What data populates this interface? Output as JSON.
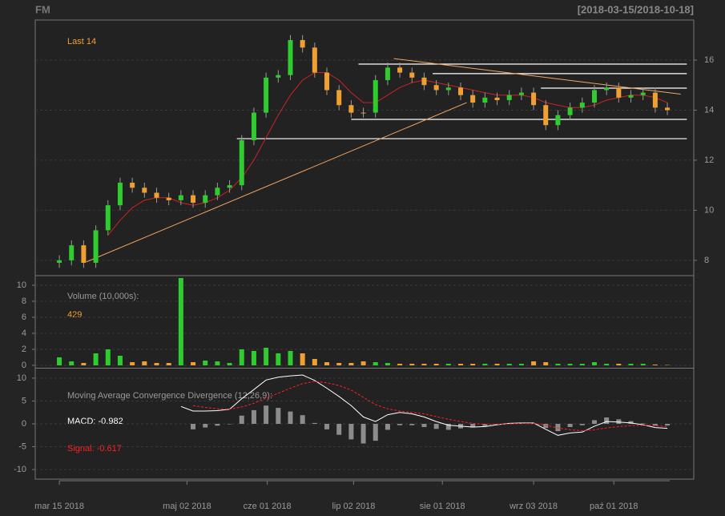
{
  "chart_data": [
    {
      "type": "candlestick",
      "title": "FM",
      "subtitle": "[2018-03-15/2018-10-18]",
      "label": "Last 14",
      "x": [
        0,
        1,
        2,
        3,
        4,
        5,
        6,
        7,
        8,
        9,
        10,
        11,
        12,
        13,
        14,
        15,
        16,
        17,
        18,
        19,
        20,
        21,
        22,
        23,
        24,
        25,
        26,
        27,
        28,
        29,
        30,
        31,
        32,
        33,
        34,
        35,
        36,
        37,
        38,
        39,
        40,
        41,
        42,
        43,
        44,
        45,
        46,
        47,
        48,
        49,
        50
      ],
      "open": [
        7.9,
        8.0,
        8.6,
        7.9,
        9.2,
        10.2,
        11.1,
        10.9,
        10.7,
        10.5,
        10.4,
        10.6,
        10.3,
        10.6,
        10.9,
        11.0,
        12.8,
        13.9,
        15.3,
        15.4,
        16.8,
        16.5,
        15.5,
        14.8,
        14.2,
        13.9,
        13.9,
        15.2,
        15.7,
        15.5,
        15.3,
        15.0,
        14.8,
        14.9,
        14.6,
        14.3,
        14.5,
        14.4,
        14.6,
        14.7,
        14.2,
        13.4,
        13.8,
        14.1,
        14.3,
        14.8,
        14.9,
        14.5,
        14.6,
        14.7,
        14.1
      ],
      "high": [
        8.2,
        8.8,
        8.8,
        9.4,
        10.4,
        11.3,
        11.3,
        11.1,
        10.9,
        10.7,
        10.8,
        10.8,
        10.8,
        11.1,
        11.2,
        13.0,
        14.1,
        15.5,
        15.6,
        17.0,
        17.0,
        16.7,
        15.7,
        15.0,
        14.4,
        14.1,
        15.4,
        15.9,
        15.9,
        15.7,
        15.5,
        15.2,
        15.1,
        15.1,
        14.8,
        14.7,
        14.7,
        14.8,
        14.9,
        14.9,
        14.4,
        14.0,
        14.3,
        14.5,
        15.0,
        15.1,
        15.1,
        14.8,
        14.9,
        14.9,
        14.3
      ],
      "low": [
        7.7,
        7.8,
        7.7,
        7.7,
        9.0,
        10.0,
        10.7,
        10.5,
        10.3,
        10.2,
        10.2,
        10.1,
        10.1,
        10.4,
        10.7,
        10.8,
        12.6,
        13.7,
        15.1,
        15.2,
        16.3,
        15.3,
        14.6,
        14.0,
        13.7,
        13.7,
        13.7,
        15.0,
        15.3,
        15.1,
        14.8,
        14.6,
        14.6,
        14.4,
        14.1,
        14.1,
        14.2,
        14.2,
        14.4,
        14.0,
        13.2,
        13.2,
        13.6,
        13.9,
        14.1,
        14.6,
        14.3,
        14.3,
        14.4,
        13.9,
        13.8
      ],
      "close": [
        8.0,
        8.6,
        7.9,
        9.2,
        10.2,
        11.1,
        10.9,
        10.7,
        10.5,
        10.4,
        10.6,
        10.3,
        10.6,
        10.9,
        11.0,
        12.8,
        13.9,
        15.3,
        15.4,
        16.8,
        16.5,
        15.5,
        14.8,
        14.2,
        13.9,
        13.9,
        15.2,
        15.7,
        15.5,
        15.3,
        15.0,
        14.8,
        14.9,
        14.6,
        14.3,
        14.5,
        14.4,
        14.6,
        14.7,
        14.2,
        13.4,
        13.8,
        14.1,
        14.3,
        14.8,
        14.9,
        14.5,
        14.6,
        14.7,
        14.1,
        14.0
      ],
      "up_color": "#2ecc2e",
      "down_color": "#f0a030",
      "ma": {
        "color": "#cc2222",
        "values": [
          null,
          null,
          null,
          null,
          9.0,
          9.6,
          10.1,
          10.4,
          10.5,
          10.5,
          10.3,
          10.2,
          10.3,
          10.5,
          10.8,
          11.3,
          12.0,
          12.9,
          13.8,
          14.6,
          15.2,
          15.5,
          15.5,
          15.2,
          14.7,
          14.3,
          14.3,
          14.6,
          14.9,
          15.1,
          15.2,
          15.1,
          15.0,
          14.9,
          14.8,
          14.7,
          14.6,
          14.6,
          14.6,
          14.5,
          14.3,
          14.2,
          14.1,
          14.1,
          14.2,
          14.4,
          14.5,
          14.6,
          14.6,
          14.5,
          14.3
        ]
      },
      "trendlines": [
        {
          "color": "#f4a460",
          "x": [
            2.24,
            33.5
          ],
          "y": [
            7.94,
            14.3
          ]
        },
        {
          "color": "#f4a460",
          "x": [
            27.5,
            51.1
          ],
          "y": [
            16.06,
            14.64
          ]
        }
      ],
      "hlines": [
        {
          "value": 15.84,
          "from": 24.6,
          "to": 51.6
        },
        {
          "value": 15.46,
          "from": 30.7,
          "to": 51.6
        },
        {
          "value": 14.88,
          "from": 39.6,
          "to": 51.6
        },
        {
          "value": 13.63,
          "from": 24.0,
          "to": 51.6
        },
        {
          "value": 12.86,
          "from": 14.6,
          "to": 51.6
        }
      ],
      "xlim": [
        -1.98,
        52.17
      ],
      "ylim": [
        7.42,
        17.6
      ],
      "yticks": [
        8,
        10,
        12,
        14,
        16
      ],
      "grid": true
    },
    {
      "type": "bar",
      "label": "Volume (10,000s):",
      "last": 429,
      "values": [
        1.0,
        0.5,
        0.3,
        1.5,
        2.0,
        1.2,
        0.4,
        0.5,
        0.3,
        0.3,
        10.9,
        0.4,
        0.6,
        0.5,
        0.3,
        2.0,
        1.8,
        2.2,
        1.5,
        1.8,
        1.5,
        0.8,
        0.4,
        0.3,
        0.3,
        0.5,
        0.4,
        0.3,
        0.2,
        0.2,
        0.2,
        0.2,
        0.2,
        0.2,
        0.2,
        0.2,
        0.2,
        0.2,
        0.2,
        0.5,
        0.4,
        0.2,
        0.2,
        0.2,
        0.4,
        0.2,
        0.2,
        0.2,
        0.2,
        0.1,
        0.0429
      ],
      "xlim": [
        -1.98,
        52.17
      ],
      "ylim": [
        -0.3,
        11.1
      ],
      "yticks": [
        0,
        2,
        4,
        6,
        8,
        10
      ],
      "grid": true
    },
    {
      "type": "macd",
      "label": "Moving Average Convergence Divergence (12,26,9):",
      "macd_label": "MACD: -0.982",
      "signal_label": "Signal: -0.617",
      "macd": {
        "color": "#ffffff",
        "values": [
          null,
          null,
          null,
          null,
          null,
          null,
          null,
          null,
          null,
          null,
          3.8,
          2.8,
          2.8,
          2.9,
          3.2,
          5.5,
          7.5,
          9.6,
          10.2,
          10.5,
          10.7,
          9.5,
          7.8,
          6.0,
          4.0,
          1.5,
          0.5,
          2.0,
          2.5,
          2.2,
          1.5,
          0.5,
          -0.3,
          -0.5,
          -0.7,
          -0.6,
          -0.2,
          0.1,
          0.2,
          0.2,
          -1.2,
          -2.5,
          -2.0,
          -1.8,
          -0.5,
          0.5,
          0.4,
          0.2,
          -0.2,
          -0.8,
          -0.982
        ]
      },
      "signal": {
        "color": "#ff2020",
        "values": [
          null,
          null,
          null,
          null,
          null,
          null,
          null,
          null,
          null,
          null,
          null,
          4.0,
          3.6,
          3.3,
          3.2,
          3.7,
          4.5,
          5.6,
          6.7,
          7.8,
          8.8,
          9.3,
          9.0,
          8.4,
          7.4,
          5.8,
          4.2,
          3.3,
          2.8,
          2.5,
          2.2,
          1.6,
          1.0,
          0.5,
          0.1,
          -0.1,
          -0.1,
          0,
          0.1,
          0.1,
          -0.3,
          -0.9,
          -1.3,
          -1.5,
          -1.3,
          -0.9,
          -0.6,
          -0.4,
          -0.3,
          -0.4,
          -0.617
        ]
      },
      "histogram": {
        "color": "#8c8c8c",
        "values": [
          null,
          null,
          null,
          null,
          null,
          null,
          null,
          null,
          null,
          null,
          null,
          -1.2,
          -0.8,
          -0.4,
          0,
          1.8,
          3.0,
          4.0,
          3.5,
          2.7,
          1.9,
          0.2,
          -1.2,
          -2.4,
          -3.4,
          -4.3,
          -3.7,
          -1.3,
          -0.3,
          -0.3,
          -0.7,
          -1.1,
          -1.3,
          -1.0,
          -0.8,
          -0.5,
          -0.1,
          0.1,
          0.1,
          0.1,
          -0.9,
          -1.6,
          -0.7,
          -0.3,
          0.8,
          1.4,
          1.0,
          0.6,
          0.1,
          -0.4,
          -0.365
        ]
      },
      "xlim": [
        -1.98,
        52.17
      ],
      "ylim": [
        -12.1,
        12.1
      ],
      "yticks": [
        -10,
        -5,
        0,
        5,
        10
      ],
      "grid": true,
      "xticks": [
        {
          "value": 0,
          "label": "mar 15 2018"
        },
        {
          "value": 10.5,
          "label": "maj 02 2018"
        },
        {
          "value": 17.1,
          "label": "cze 01 2018"
        },
        {
          "value": 24.2,
          "label": "lip 02 2018"
        },
        {
          "value": 31.5,
          "label": "sie 01 2018"
        },
        {
          "value": 39.0,
          "label": "wrz 03 2018"
        },
        {
          "value": 45.6,
          "label": "paź 01 2018"
        }
      ]
    }
  ]
}
